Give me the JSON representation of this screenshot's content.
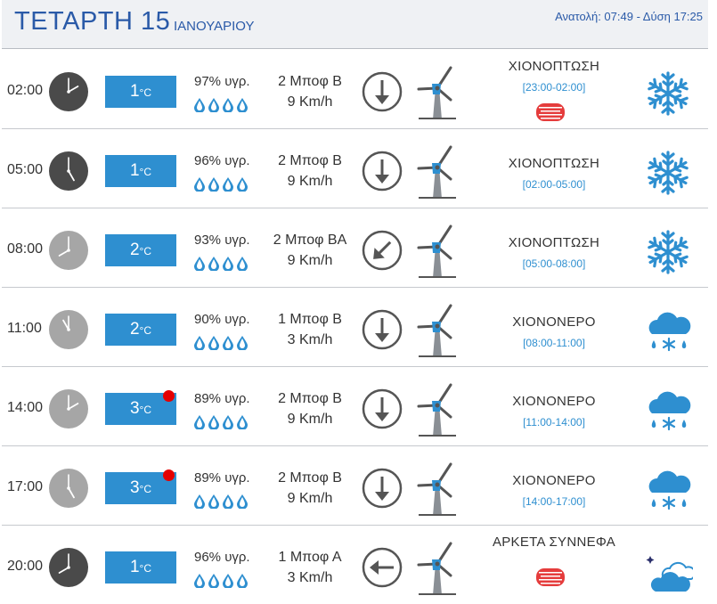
{
  "header": {
    "day": "ΤΕΤΑΡΤΗ 15",
    "month": "ΙΑΝΟΥΑΡΙΟΥ",
    "sun": "Ανατολή: 07:49  - Δύση 17:25"
  },
  "colors": {
    "accent": "#2e8fd0",
    "header_text": "#2a5aa8",
    "alert_dot": "#e50000",
    "clock_night": "#4a4a4a",
    "clock_day": "#a6a6a6"
  },
  "rows": [
    {
      "time": "02:00",
      "clock": "night",
      "temp": "1",
      "unit": "°C",
      "alert": false,
      "humidity": "97% υγρ.",
      "wind_bft": "2 Μποφ Β",
      "wind_kmh": "9 Km/h",
      "wind_dir": "N",
      "condition": "ΧΙΟΝΟΠΤΩΣΗ",
      "period": "[23:00-02:00]",
      "haze": true,
      "icon": "snowflake-icon"
    },
    {
      "time": "05:00",
      "clock": "night",
      "temp": "1",
      "unit": "°C",
      "alert": false,
      "humidity": "96% υγρ.",
      "wind_bft": "2 Μποφ Β",
      "wind_kmh": "9 Km/h",
      "wind_dir": "N",
      "condition": "ΧΙΟΝΟΠΤΩΣΗ",
      "period": "[02:00-05:00]",
      "haze": false,
      "icon": "snowflake-icon"
    },
    {
      "time": "08:00",
      "clock": "day",
      "temp": "2",
      "unit": "°C",
      "alert": false,
      "humidity": "93% υγρ.",
      "wind_bft": "2 Μποφ ΒΑ",
      "wind_kmh": "9 Km/h",
      "wind_dir": "NE",
      "condition": "ΧΙΟΝΟΠΤΩΣΗ",
      "period": "[05:00-08:00]",
      "haze": false,
      "icon": "snowflake-icon"
    },
    {
      "time": "11:00",
      "clock": "day",
      "temp": "2",
      "unit": "°C",
      "alert": false,
      "humidity": "90% υγρ.",
      "wind_bft": "1 Μποφ Β",
      "wind_kmh": "3 Km/h",
      "wind_dir": "N",
      "condition": "ΧΙΟΝΟΝΕΡΟ",
      "period": "[08:00-11:00]",
      "haze": false,
      "icon": "sleet-icon"
    },
    {
      "time": "14:00",
      "clock": "day",
      "temp": "3",
      "unit": "°C",
      "alert": true,
      "humidity": "89% υγρ.",
      "wind_bft": "2 Μποφ Β",
      "wind_kmh": "9 Km/h",
      "wind_dir": "N",
      "condition": "ΧΙΟΝΟΝΕΡΟ",
      "period": "[11:00-14:00]",
      "haze": false,
      "icon": "sleet-icon"
    },
    {
      "time": "17:00",
      "clock": "day",
      "temp": "3",
      "unit": "°C",
      "alert": true,
      "humidity": "89% υγρ.",
      "wind_bft": "2 Μποφ Β",
      "wind_kmh": "9 Km/h",
      "wind_dir": "N",
      "condition": "ΧΙΟΝΟΝΕΡΟ",
      "period": "[14:00-17:00]",
      "haze": false,
      "icon": "sleet-icon"
    },
    {
      "time": "20:00",
      "clock": "night",
      "temp": "1",
      "unit": "°C",
      "alert": false,
      "humidity": "96% υγρ.",
      "wind_bft": "1 Μποφ Α",
      "wind_kmh": "3 Km/h",
      "wind_dir": "E",
      "condition": "ΑΡΚΕΤΑ ΣΥΝΝΕΦΑ",
      "period": "",
      "haze": true,
      "icon": "moon-clouds-icon"
    }
  ]
}
